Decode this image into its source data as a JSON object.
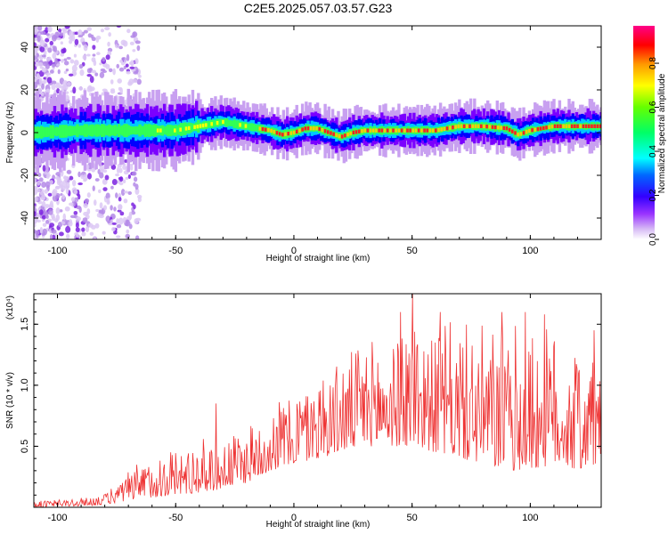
{
  "title": "C2E5.2025.057.03.57.G23",
  "chart_data": [
    {
      "type": "heatmap",
      "name": "spectrogram",
      "xlabel": "Height of straight line (km)",
      "ylabel": "Frequency (Hz)",
      "xlim": [
        -110,
        130
      ],
      "ylim": [
        -50,
        50
      ],
      "xticks": [
        -100,
        -50,
        0,
        50,
        100
      ],
      "yticks": [
        -40,
        -20,
        0,
        20,
        40
      ],
      "colorbar": {
        "label": "Normalized spectral amplitude",
        "range": [
          0,
          0.97
        ],
        "ticks": [
          0.0,
          0.2,
          0.4,
          0.6,
          0.8
        ],
        "colormap": [
          "#ffffff",
          "#c8a0f0",
          "#7b00ff",
          "#0000ff",
          "#00ffff",
          "#00ff00",
          "#ffff00",
          "#ff8000",
          "#ff0000",
          "#ff0080"
        ]
      },
      "ridge": {
        "x": [
          -110,
          -90,
          -70,
          -50,
          -40,
          -30,
          -20,
          -10,
          -5,
          0,
          5,
          10,
          15,
          20,
          25,
          30,
          40,
          50,
          55,
          60,
          65,
          70,
          80,
          90,
          95,
          100,
          110,
          120,
          130
        ],
        "freq": [
          0,
          1,
          1,
          1,
          3,
          5,
          3,
          1,
          -1,
          0,
          2,
          2,
          0,
          -2,
          0,
          1,
          1,
          1,
          1,
          1,
          2,
          3,
          3,
          2,
          -1,
          1,
          3,
          3,
          3
        ]
      }
    },
    {
      "type": "line",
      "name": "snr",
      "xlabel": "Height of straight line (km)",
      "ylabel": "SNR (10 * v/v)",
      "y_multiplier": "(x10⁴)",
      "xlim": [
        -110,
        130
      ],
      "ylim": [
        0,
        1.75
      ],
      "xticks": [
        -100,
        -50,
        0,
        50,
        100
      ],
      "yticks": [
        0.5,
        1.0,
        1.5
      ],
      "ytick_labels": [
        "0.5",
        "1.0",
        "1.5"
      ],
      "color": "#ee3333",
      "envelope": {
        "x": [
          -110,
          -90,
          -80,
          -75,
          -70,
          -60,
          -50,
          -40,
          -30,
          -20,
          -10,
          0,
          10,
          20,
          30,
          40,
          50,
          60,
          70,
          80,
          90,
          100,
          110,
          120,
          130
        ],
        "upper": [
          0.06,
          0.08,
          0.12,
          0.2,
          0.3,
          0.45,
          0.5,
          0.55,
          0.62,
          0.7,
          0.85,
          1.0,
          1.15,
          1.25,
          1.35,
          1.45,
          1.6,
          1.55,
          1.5,
          1.5,
          1.5,
          1.5,
          1.45,
          1.4,
          1.3
        ],
        "lower": [
          0.0,
          0.01,
          0.02,
          0.04,
          0.05,
          0.08,
          0.1,
          0.12,
          0.15,
          0.2,
          0.3,
          0.35,
          0.4,
          0.45,
          0.5,
          0.5,
          0.5,
          0.45,
          0.4,
          0.35,
          0.3,
          0.3,
          0.35,
          0.3,
          0.35
        ]
      },
      "peaks": [
        {
          "x": 50.2,
          "y": 1.75
        },
        {
          "x": 45,
          "y": 1.6
        },
        {
          "x": 62,
          "y": 1.6
        },
        {
          "x": 88,
          "y": 1.6
        },
        {
          "x": 98,
          "y": 1.6
        },
        {
          "x": 106,
          "y": 1.58
        },
        {
          "x": 127,
          "y": 1.45
        },
        {
          "x": -33,
          "y": 0.85
        }
      ]
    }
  ]
}
